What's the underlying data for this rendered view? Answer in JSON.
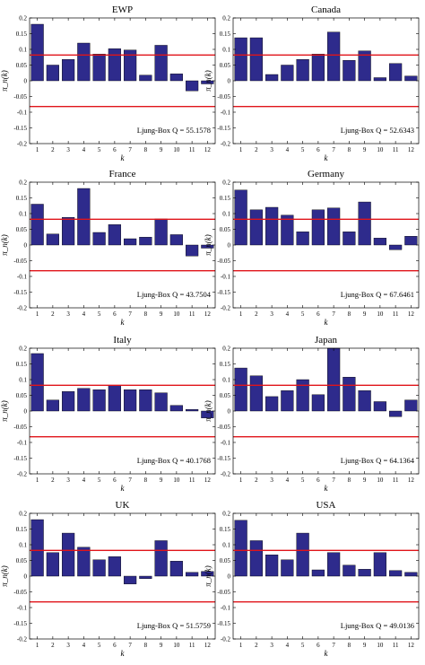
{
  "colors": {
    "bar": "#2e2b8c",
    "bar_edge": "#000000",
    "threshold": "#e0141a",
    "axis": "#000000"
  },
  "chart_data": [
    {
      "type": "bar",
      "title": "EWP",
      "xlabel": "k",
      "ylabel": "π_n(k)",
      "categories": [
        "1",
        "2",
        "3",
        "4",
        "5",
        "6",
        "7",
        "8",
        "9",
        "10",
        "11",
        "12"
      ],
      "values": [
        0.18,
        0.05,
        0.068,
        0.12,
        0.085,
        0.102,
        0.098,
        0.018,
        0.113,
        0.022,
        -0.032,
        -0.01
      ],
      "ylim": [
        -0.2,
        0.2
      ],
      "yticks": [
        "-0.2",
        "-0.15",
        "-0.1",
        "-0.05",
        "0",
        "0.05",
        "0.1",
        "0.15",
        "0.2"
      ],
      "threshold_lines": [
        0.082,
        -0.082
      ],
      "annotation": "Ljung-Box Q = 55.1578"
    },
    {
      "type": "bar",
      "title": "Canada",
      "xlabel": "k",
      "ylabel": "π_n(k)",
      "categories": [
        "1",
        "2",
        "3",
        "4",
        "5",
        "6",
        "7",
        "8",
        "9",
        "10",
        "11",
        "12"
      ],
      "values": [
        0.137,
        0.137,
        0.02,
        0.05,
        0.068,
        0.085,
        0.155,
        0.065,
        0.095,
        0.01,
        0.055,
        0.015
      ],
      "ylim": [
        -0.2,
        0.2
      ],
      "yticks": [
        "-0.2",
        "-0.15",
        "-0.1",
        "-0.05",
        "0",
        "0.05",
        "0.1",
        "0.15",
        "0.2"
      ],
      "threshold_lines": [
        0.082,
        -0.082
      ],
      "annotation": "Ljung-Box Q = 52.6343"
    },
    {
      "type": "bar",
      "title": "France",
      "xlabel": "k",
      "ylabel": "π_n(k)",
      "categories": [
        "1",
        "2",
        "3",
        "4",
        "5",
        "6",
        "7",
        "8",
        "9",
        "10",
        "11",
        "12"
      ],
      "values": [
        0.13,
        0.035,
        0.088,
        0.18,
        0.04,
        0.065,
        0.02,
        0.025,
        0.083,
        0.033,
        -0.035,
        -0.01
      ],
      "ylim": [
        -0.2,
        0.2
      ],
      "yticks": [
        "-0.2",
        "-0.15",
        "-0.1",
        "-0.05",
        "0",
        "0.05",
        "0.1",
        "0.15",
        "0.2"
      ],
      "threshold_lines": [
        0.082,
        -0.082
      ],
      "annotation": "Ljung-Box Q = 43.7504"
    },
    {
      "type": "bar",
      "title": "Germany",
      "xlabel": "k",
      "ylabel": "π_n(k)",
      "categories": [
        "1",
        "2",
        "3",
        "4",
        "5",
        "6",
        "7",
        "8",
        "9",
        "10",
        "11",
        "12"
      ],
      "values": [
        0.175,
        0.112,
        0.12,
        0.095,
        0.042,
        0.112,
        0.118,
        0.042,
        0.137,
        0.022,
        -0.015,
        0.028
      ],
      "ylim": [
        -0.2,
        0.2
      ],
      "yticks": [
        "-0.2",
        "-0.15",
        "-0.1",
        "-0.05",
        "0",
        "0.05",
        "0.1",
        "0.15",
        "0.2"
      ],
      "threshold_lines": [
        0.082,
        -0.082
      ],
      "annotation": "Ljung-Box Q = 67.6461"
    },
    {
      "type": "bar",
      "title": "Italy",
      "xlabel": "k",
      "ylabel": "π_n(k)",
      "categories": [
        "1",
        "2",
        "3",
        "4",
        "5",
        "6",
        "7",
        "8",
        "9",
        "10",
        "11",
        "12"
      ],
      "values": [
        0.183,
        0.035,
        0.062,
        0.072,
        0.068,
        0.082,
        0.068,
        0.068,
        0.058,
        0.018,
        0.005,
        -0.022
      ],
      "ylim": [
        -0.2,
        0.2
      ],
      "yticks": [
        "-0.2",
        "-0.15",
        "-0.1",
        "-0.05",
        "0",
        "0.05",
        "0.1",
        "0.15",
        "0.2"
      ],
      "threshold_lines": [
        0.082,
        -0.082
      ],
      "annotation": "Ljung-Box Q = 40.1768"
    },
    {
      "type": "bar",
      "title": "Japan",
      "xlabel": "k",
      "ylabel": "π_n(k)",
      "categories": [
        "1",
        "2",
        "3",
        "4",
        "5",
        "6",
        "7",
        "8",
        "9",
        "10",
        "11",
        "12"
      ],
      "values": [
        0.137,
        0.112,
        0.046,
        0.065,
        0.1,
        0.052,
        0.2,
        0.108,
        0.065,
        0.03,
        -0.018,
        0.035
      ],
      "ylim": [
        -0.2,
        0.2
      ],
      "yticks": [
        "-0.2",
        "-0.15",
        "-0.1",
        "-0.05",
        "0",
        "0.05",
        "0.1",
        "0.15",
        "0.2"
      ],
      "threshold_lines": [
        0.082,
        -0.082
      ],
      "annotation": "Ljung-Box Q = 64.1364"
    },
    {
      "type": "bar",
      "title": "UK",
      "xlabel": "k",
      "ylabel": "π_n(k)",
      "categories": [
        "1",
        "2",
        "3",
        "4",
        "5",
        "6",
        "7",
        "8",
        "9",
        "10",
        "11",
        "12"
      ],
      "values": [
        0.18,
        0.075,
        0.137,
        0.092,
        0.052,
        0.062,
        -0.025,
        -0.008,
        0.113,
        0.048,
        0.012,
        0.015
      ],
      "ylim": [
        -0.2,
        0.2
      ],
      "yticks": [
        "-0.2",
        "-0.15",
        "-0.1",
        "-0.05",
        "0",
        "0.05",
        "0.1",
        "0.15",
        "0.2"
      ],
      "threshold_lines": [
        0.082,
        -0.082
      ],
      "annotation": "Ljung-Box Q = 51.5759"
    },
    {
      "type": "bar",
      "title": "USA",
      "xlabel": "k",
      "ylabel": "π_n(k)",
      "categories": [
        "1",
        "2",
        "3",
        "4",
        "5",
        "6",
        "7",
        "8",
        "9",
        "10",
        "11",
        "12"
      ],
      "values": [
        0.178,
        0.113,
        0.068,
        0.052,
        0.137,
        0.02,
        0.075,
        0.035,
        0.022,
        0.075,
        0.018,
        0.012
      ],
      "ylim": [
        -0.2,
        0.2
      ],
      "yticks": [
        "-0.2",
        "-0.15",
        "-0.1",
        "-0.05",
        "0",
        "0.05",
        "0.1",
        "0.15",
        "0.2"
      ],
      "threshold_lines": [
        0.082,
        -0.082
      ],
      "annotation": "Ljung-Box Q = 49.0136"
    }
  ]
}
